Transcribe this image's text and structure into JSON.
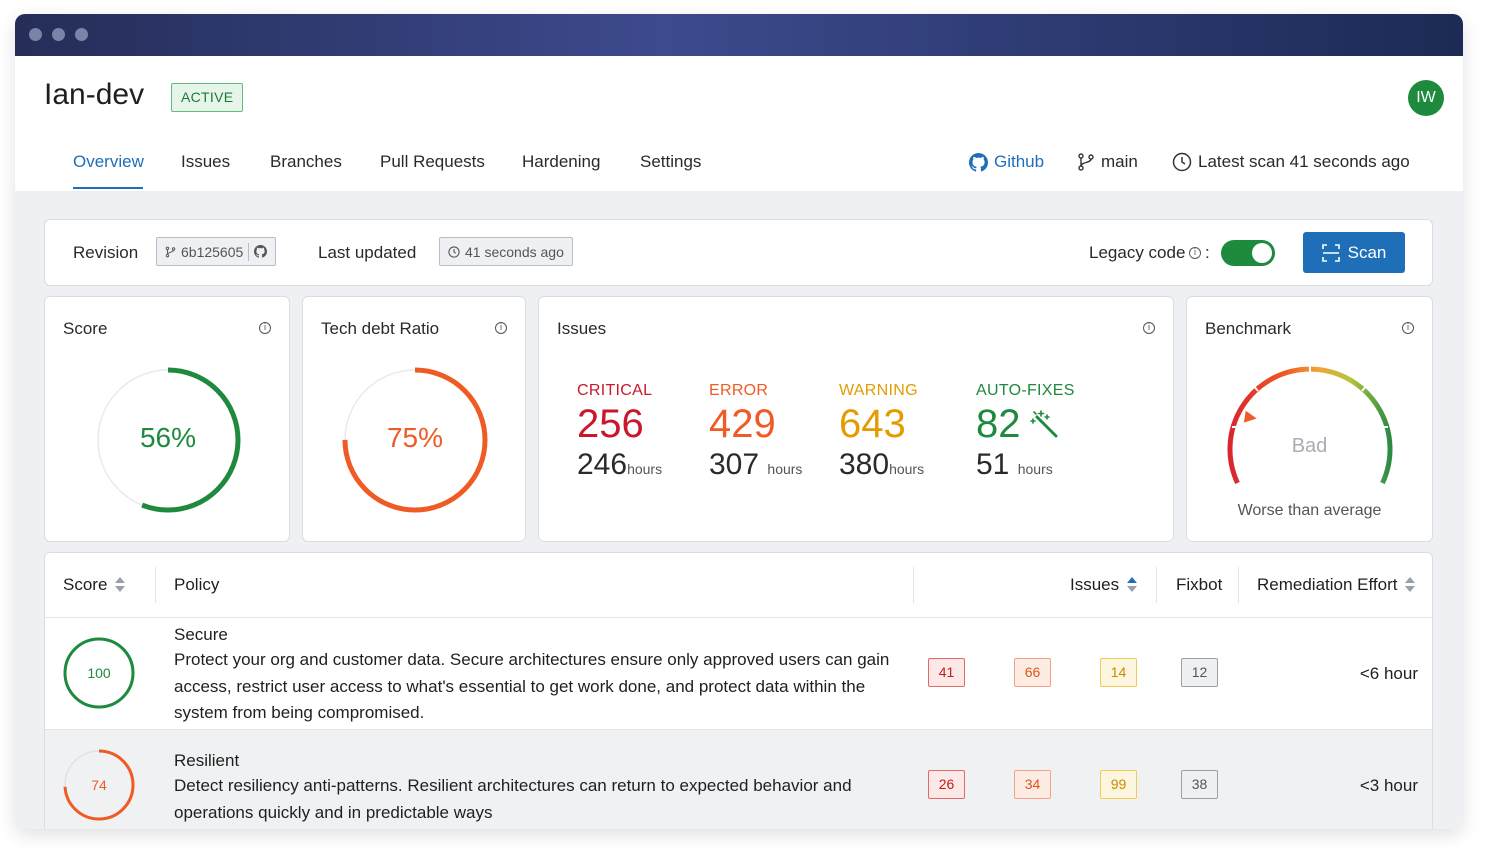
{
  "project": {
    "name": "Ian-dev",
    "status": "ACTIVE",
    "avatar_initials": "IW"
  },
  "tabs": [
    {
      "label": "Overview",
      "active": true
    },
    {
      "label": "Issues"
    },
    {
      "label": "Branches"
    },
    {
      "label": "Pull Requests"
    },
    {
      "label": "Hardening"
    },
    {
      "label": "Settings"
    }
  ],
  "header_links": {
    "github": "Github",
    "branch": "main",
    "latest_scan": "Latest scan 41 seconds ago"
  },
  "revision_bar": {
    "revision_label": "Revision",
    "revision_value": "6b125605",
    "last_updated_label": "Last updated",
    "last_updated_value": "41 seconds ago",
    "legacy_code_label": "Legacy code",
    "legacy_code_on": true,
    "scan_label": "Scan"
  },
  "score_card": {
    "title": "Score",
    "value_text": "56%",
    "percent": 56,
    "color": "#1d8a3e"
  },
  "tech_debt_card": {
    "title": "Tech debt Ratio",
    "value_text": "75%",
    "percent": 75,
    "color": "#f05a24"
  },
  "issues_card": {
    "title": "Issues",
    "columns": [
      {
        "label": "CRITICAL",
        "count": "256",
        "hours": "246",
        "unit": "hours",
        "color": "#c9182b"
      },
      {
        "label": "ERROR",
        "count": "429",
        "hours": "307",
        "unit": "hours",
        "color": "#f05a24"
      },
      {
        "label": "WARNING",
        "count": "643",
        "hours": "380",
        "unit": "hours",
        "color": "#e39b00"
      },
      {
        "label": "AUTO-FIXES",
        "count": "82",
        "hours": "51",
        "unit": "hours",
        "color": "#1d8a3e"
      }
    ]
  },
  "benchmark_card": {
    "title": "Benchmark",
    "rating": "Bad",
    "caption": "Worse than average",
    "gauge_level": 0.2
  },
  "table": {
    "headers": {
      "score": "Score",
      "policy": "Policy",
      "issues": "Issues",
      "fixbot": "Fixbot",
      "effort": "Remediation Effort"
    },
    "rows": [
      {
        "score": "100",
        "score_percent": 100,
        "score_color": "#1d8a3e",
        "name": "Secure",
        "description": "Protect your org and customer data. Secure architectures ensure only approved users can gain access, restrict user access to what's essential to get work done, and protect data within the system from being compromised.",
        "critical": "41",
        "error": "66",
        "warning": "14",
        "fixbot": "12",
        "effort": "<6 hour"
      },
      {
        "score": "74",
        "score_percent": 74,
        "score_color": "#f05a24",
        "name": "Resilient",
        "description": "Detect resiliency anti-patterns. Resilient architectures can return to expected behavior and operations quickly and in predictable ways",
        "critical": "26",
        "error": "34",
        "warning": "99",
        "fixbot": "38",
        "effort": "<3 hour"
      }
    ]
  }
}
